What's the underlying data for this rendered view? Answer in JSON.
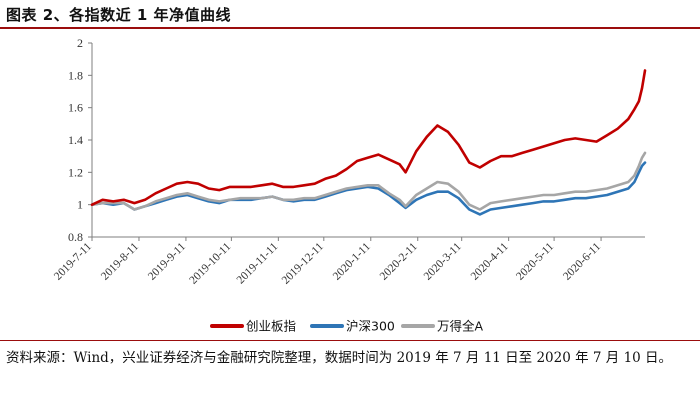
{
  "figure": {
    "title": "图表 2、各指数近 1 年净值曲线",
    "source": "资料来源：Wind，兴业证券经济与金融研究院整理，数据时间为 2019 年 7 月 11 日至 2020 年 7 月 10 日。"
  },
  "chart_data": {
    "type": "line",
    "ylim": [
      0.8,
      2
    ],
    "yticks": [
      "0.8",
      "1",
      "1.2",
      "1.4",
      "1.6",
      "1.8",
      "2"
    ],
    "ytick_values": [
      0.8,
      1.0,
      1.2,
      1.4,
      1.6,
      1.8,
      2.0
    ],
    "xticks": [
      "2019-7-11",
      "2019-8-11",
      "2019-9-11",
      "2019-10-11",
      "2019-11-11",
      "2019-12-11",
      "2020-1-11",
      "2020-2-11",
      "2020-3-11",
      "2020-4-11",
      "2020-5-11",
      "2020-6-11"
    ],
    "grid": false,
    "legend_position": "bottom",
    "x": [
      "2019-07-11",
      "2019-07-18",
      "2019-07-25",
      "2019-08-01",
      "2019-08-08",
      "2019-08-15",
      "2019-08-22",
      "2019-08-29",
      "2019-09-05",
      "2019-09-12",
      "2019-09-19",
      "2019-09-26",
      "2019-10-03",
      "2019-10-10",
      "2019-10-17",
      "2019-10-24",
      "2019-10-31",
      "2019-11-07",
      "2019-11-14",
      "2019-11-21",
      "2019-11-28",
      "2019-12-05",
      "2019-12-12",
      "2019-12-19",
      "2019-12-26",
      "2020-01-02",
      "2020-01-09",
      "2020-01-16",
      "2020-01-23",
      "2020-01-30",
      "2020-02-03",
      "2020-02-10",
      "2020-02-17",
      "2020-02-24",
      "2020-03-02",
      "2020-03-09",
      "2020-03-16",
      "2020-03-23",
      "2020-03-30",
      "2020-04-06",
      "2020-04-13",
      "2020-04-20",
      "2020-04-27",
      "2020-05-04",
      "2020-05-11",
      "2020-05-18",
      "2020-05-25",
      "2020-06-01",
      "2020-06-08",
      "2020-06-15",
      "2020-06-22",
      "2020-06-29",
      "2020-07-03",
      "2020-07-06",
      "2020-07-08",
      "2020-07-10"
    ],
    "series": [
      {
        "name": "创业板指",
        "color": "#c00000",
        "values": [
          1.0,
          1.03,
          1.02,
          1.03,
          1.01,
          1.03,
          1.07,
          1.1,
          1.13,
          1.14,
          1.13,
          1.1,
          1.09,
          1.11,
          1.11,
          1.11,
          1.12,
          1.13,
          1.11,
          1.11,
          1.12,
          1.13,
          1.16,
          1.18,
          1.22,
          1.27,
          1.29,
          1.31,
          1.28,
          1.25,
          1.2,
          1.33,
          1.42,
          1.49,
          1.45,
          1.37,
          1.26,
          1.23,
          1.27,
          1.3,
          1.3,
          1.32,
          1.34,
          1.36,
          1.38,
          1.4,
          1.41,
          1.4,
          1.39,
          1.43,
          1.47,
          1.53,
          1.59,
          1.64,
          1.72,
          1.83
        ]
      },
      {
        "name": "沪深300",
        "color": "#2e75b6",
        "values": [
          1.0,
          1.01,
          1.0,
          1.01,
          0.97,
          0.99,
          1.01,
          1.03,
          1.05,
          1.06,
          1.04,
          1.02,
          1.01,
          1.03,
          1.03,
          1.03,
          1.04,
          1.05,
          1.03,
          1.02,
          1.03,
          1.03,
          1.05,
          1.07,
          1.09,
          1.1,
          1.11,
          1.1,
          1.06,
          1.01,
          0.98,
          1.03,
          1.06,
          1.08,
          1.08,
          1.04,
          0.97,
          0.94,
          0.97,
          0.98,
          0.99,
          1.0,
          1.01,
          1.02,
          1.02,
          1.03,
          1.04,
          1.04,
          1.05,
          1.06,
          1.08,
          1.1,
          1.14,
          1.2,
          1.24,
          1.26
        ]
      },
      {
        "name": "万得全A",
        "color": "#a6a6a6",
        "values": [
          1.0,
          1.01,
          1.01,
          1.01,
          0.97,
          0.99,
          1.02,
          1.04,
          1.06,
          1.07,
          1.05,
          1.03,
          1.02,
          1.03,
          1.04,
          1.04,
          1.04,
          1.05,
          1.03,
          1.03,
          1.04,
          1.04,
          1.06,
          1.08,
          1.1,
          1.11,
          1.12,
          1.12,
          1.07,
          1.03,
          0.99,
          1.06,
          1.1,
          1.14,
          1.13,
          1.08,
          1.0,
          0.97,
          1.01,
          1.02,
          1.03,
          1.04,
          1.05,
          1.06,
          1.06,
          1.07,
          1.08,
          1.08,
          1.09,
          1.1,
          1.12,
          1.14,
          1.18,
          1.24,
          1.29,
          1.32
        ]
      }
    ]
  }
}
